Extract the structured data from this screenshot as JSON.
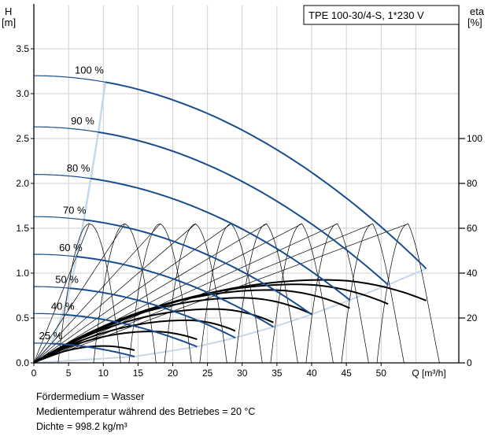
{
  "chart_data": {
    "type": "line",
    "title": "TPE 100-30/4-S, 1*230 V",
    "ylabel_left": "H",
    "ylabel_left_unit": "[m]",
    "ylabel_right": "eta",
    "ylabel_right_unit": "[%]",
    "xlabel": "Q [m³/h]",
    "xlim": [
      0,
      60
    ],
    "ylim": [
      0,
      3.5
    ],
    "y2lim": [
      0,
      125
    ],
    "x_ticks": [
      "0",
      "5",
      "10",
      "15",
      "20",
      "25",
      "30",
      "35",
      "40",
      "45",
      "50",
      "Q [m³/h]"
    ],
    "y_ticks": [
      "0.0",
      "0.5",
      "1.0",
      "1.5",
      "2.0",
      "2.5",
      "3.0",
      "3.5"
    ],
    "y2_ticks": [
      "0",
      "20",
      "40",
      "60",
      "80",
      "100"
    ],
    "head_curves": [
      {
        "name": "100 %",
        "h0": 3.2,
        "q_end": 56.5,
        "h_end": 1.05,
        "q_split": 10.3
      },
      {
        "name": "90 %",
        "h0": 2.63,
        "q_end": 51.0,
        "h_end": 0.87,
        "q_split": 9.3
      },
      {
        "name": "80 %",
        "h0": 2.1,
        "q_end": 45.5,
        "h_end": 0.7,
        "q_split": 8.2
      },
      {
        "name": "70 %",
        "h0": 1.63,
        "q_end": 40.0,
        "h_end": 0.54,
        "q_split": 7.2
      },
      {
        "name": "60 %",
        "h0": 1.21,
        "q_end": 34.5,
        "h_end": 0.4,
        "q_split": 6.2
      },
      {
        "name": "50 %",
        "h0": 0.85,
        "q_end": 29.0,
        "h_end": 0.28,
        "q_split": 5.2
      },
      {
        "name": "40 %",
        "h0": 0.55,
        "q_end": 23.5,
        "h_end": 0.18,
        "q_split": 4.1
      },
      {
        "name": "25 %",
        "h0": 0.22,
        "q_end": 14.5,
        "h_end": 0.07,
        "q_split": 2.6
      }
    ],
    "efficiency_curves": [
      {
        "q_end": 56.5,
        "eta_peak": 37,
        "q_peak": 42
      },
      {
        "q_end": 51.0,
        "eta_peak": 35,
        "q_peak": 38
      },
      {
        "q_end": 45.5,
        "eta_peak": 32.5,
        "q_peak": 34
      },
      {
        "q_end": 40.0,
        "eta_peak": 29,
        "q_peak": 30
      },
      {
        "q_end": 34.5,
        "eta_peak": 24,
        "q_peak": 26
      },
      {
        "q_end": 29.0,
        "eta_peak": 19,
        "q_peak": 22
      },
      {
        "q_end": 23.5,
        "eta_peak": 14,
        "q_peak": 17
      },
      {
        "q_end": 14.5,
        "eta_peak": 7.5,
        "q_peak": 10
      }
    ],
    "system_arcs": {
      "count": 10,
      "q_start": 3.5,
      "q_step": 5.1,
      "width": 9,
      "h_peak": 1.55
    },
    "grid": true,
    "colors": {
      "head": "#1a4d8c",
      "head_start": "#a7c0dd",
      "efficiency": "#000000",
      "boundary": "#c6d7ea"
    }
  },
  "notes": [
    "Fördermedium = Wasser",
    "Medientemperatur während des Betriebes = 20 °C",
    "Dichte = 998.2 kg/m³"
  ]
}
